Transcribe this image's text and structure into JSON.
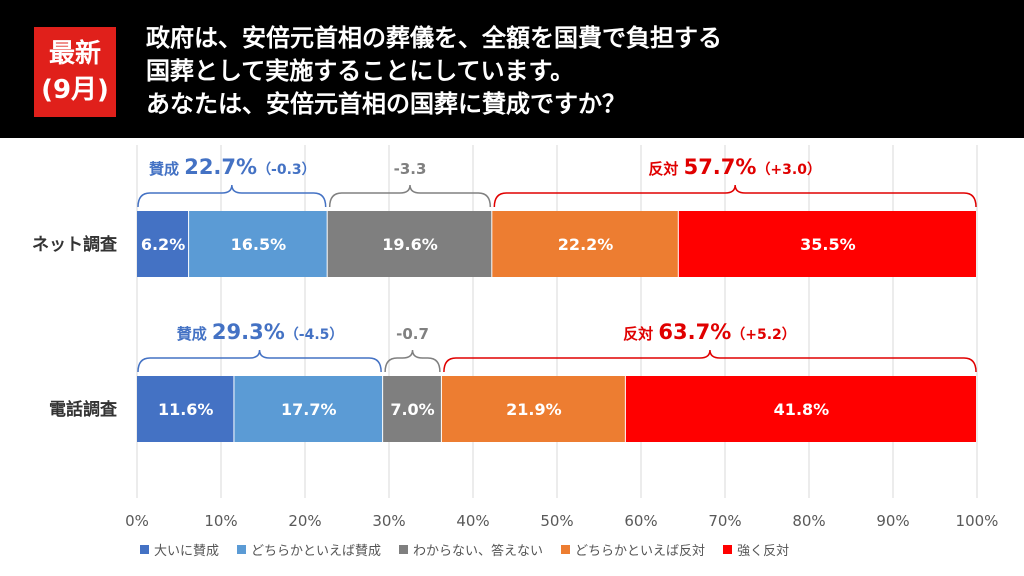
{
  "header": {
    "badge_line1": "最新",
    "badge_line2": "(9月)",
    "question_lines": [
      "政府は、安倍元首相の葬儀を、全額を国費で負担する",
      "国葬として実施することにしています。",
      "あなたは、安倍元首相の国葬に賛成ですか？"
    ]
  },
  "colors": {
    "header_bg": "#000000",
    "badge_bg": "#e0201b",
    "support_label": "#4472c4",
    "oppose_label": "#e00000",
    "neutral_label": "#808080"
  },
  "chart_data": {
    "type": "bar",
    "orientation": "horizontal",
    "stacked": true,
    "xlim": [
      0,
      100
    ],
    "x_ticks": [
      "0%",
      "10%",
      "20%",
      "30%",
      "40%",
      "50%",
      "60%",
      "70%",
      "80%",
      "90%",
      "100%"
    ],
    "grid": true,
    "categories": [
      "ネット調査",
      "電話調査"
    ],
    "series": [
      {
        "name": "大いに賛成",
        "color": "#4472c4",
        "values": [
          6.2,
          11.6
        ],
        "labels": [
          "6.2%",
          "11.6%"
        ]
      },
      {
        "name": "どちらかといえば賛成",
        "color": "#5b9bd5",
        "values": [
          16.5,
          17.7
        ],
        "labels": [
          "16.5%",
          "17.7%"
        ]
      },
      {
        "name": "わからない、答えない",
        "color": "#7f7f7f",
        "values": [
          19.6,
          7.0
        ],
        "labels": [
          "19.6%",
          "7.0%"
        ]
      },
      {
        "name": "どちらかといえば反対",
        "color": "#ed7d31",
        "values": [
          22.2,
          21.9
        ],
        "labels": [
          "22.2%",
          "21.9%"
        ]
      },
      {
        "name": "強く反対",
        "color": "#ff0000",
        "values": [
          35.5,
          41.8
        ],
        "labels": [
          "35.5%",
          "41.8%"
        ]
      }
    ],
    "legend_position": "bottom",
    "annotations": [
      {
        "support": {
          "label": "賛成",
          "value": "22.7%",
          "change": "（-0.3）"
        },
        "neutral": {
          "change": "-3.3"
        },
        "oppose": {
          "label": "反対",
          "value": "57.7%",
          "change": "（+3.0）"
        }
      },
      {
        "support": {
          "label": "賛成",
          "value": "29.3%",
          "change": "（-4.5）"
        },
        "neutral": {
          "change": "-0.7"
        },
        "oppose": {
          "label": "反対",
          "value": "63.7%",
          "change": "（+5.2）"
        }
      }
    ]
  }
}
